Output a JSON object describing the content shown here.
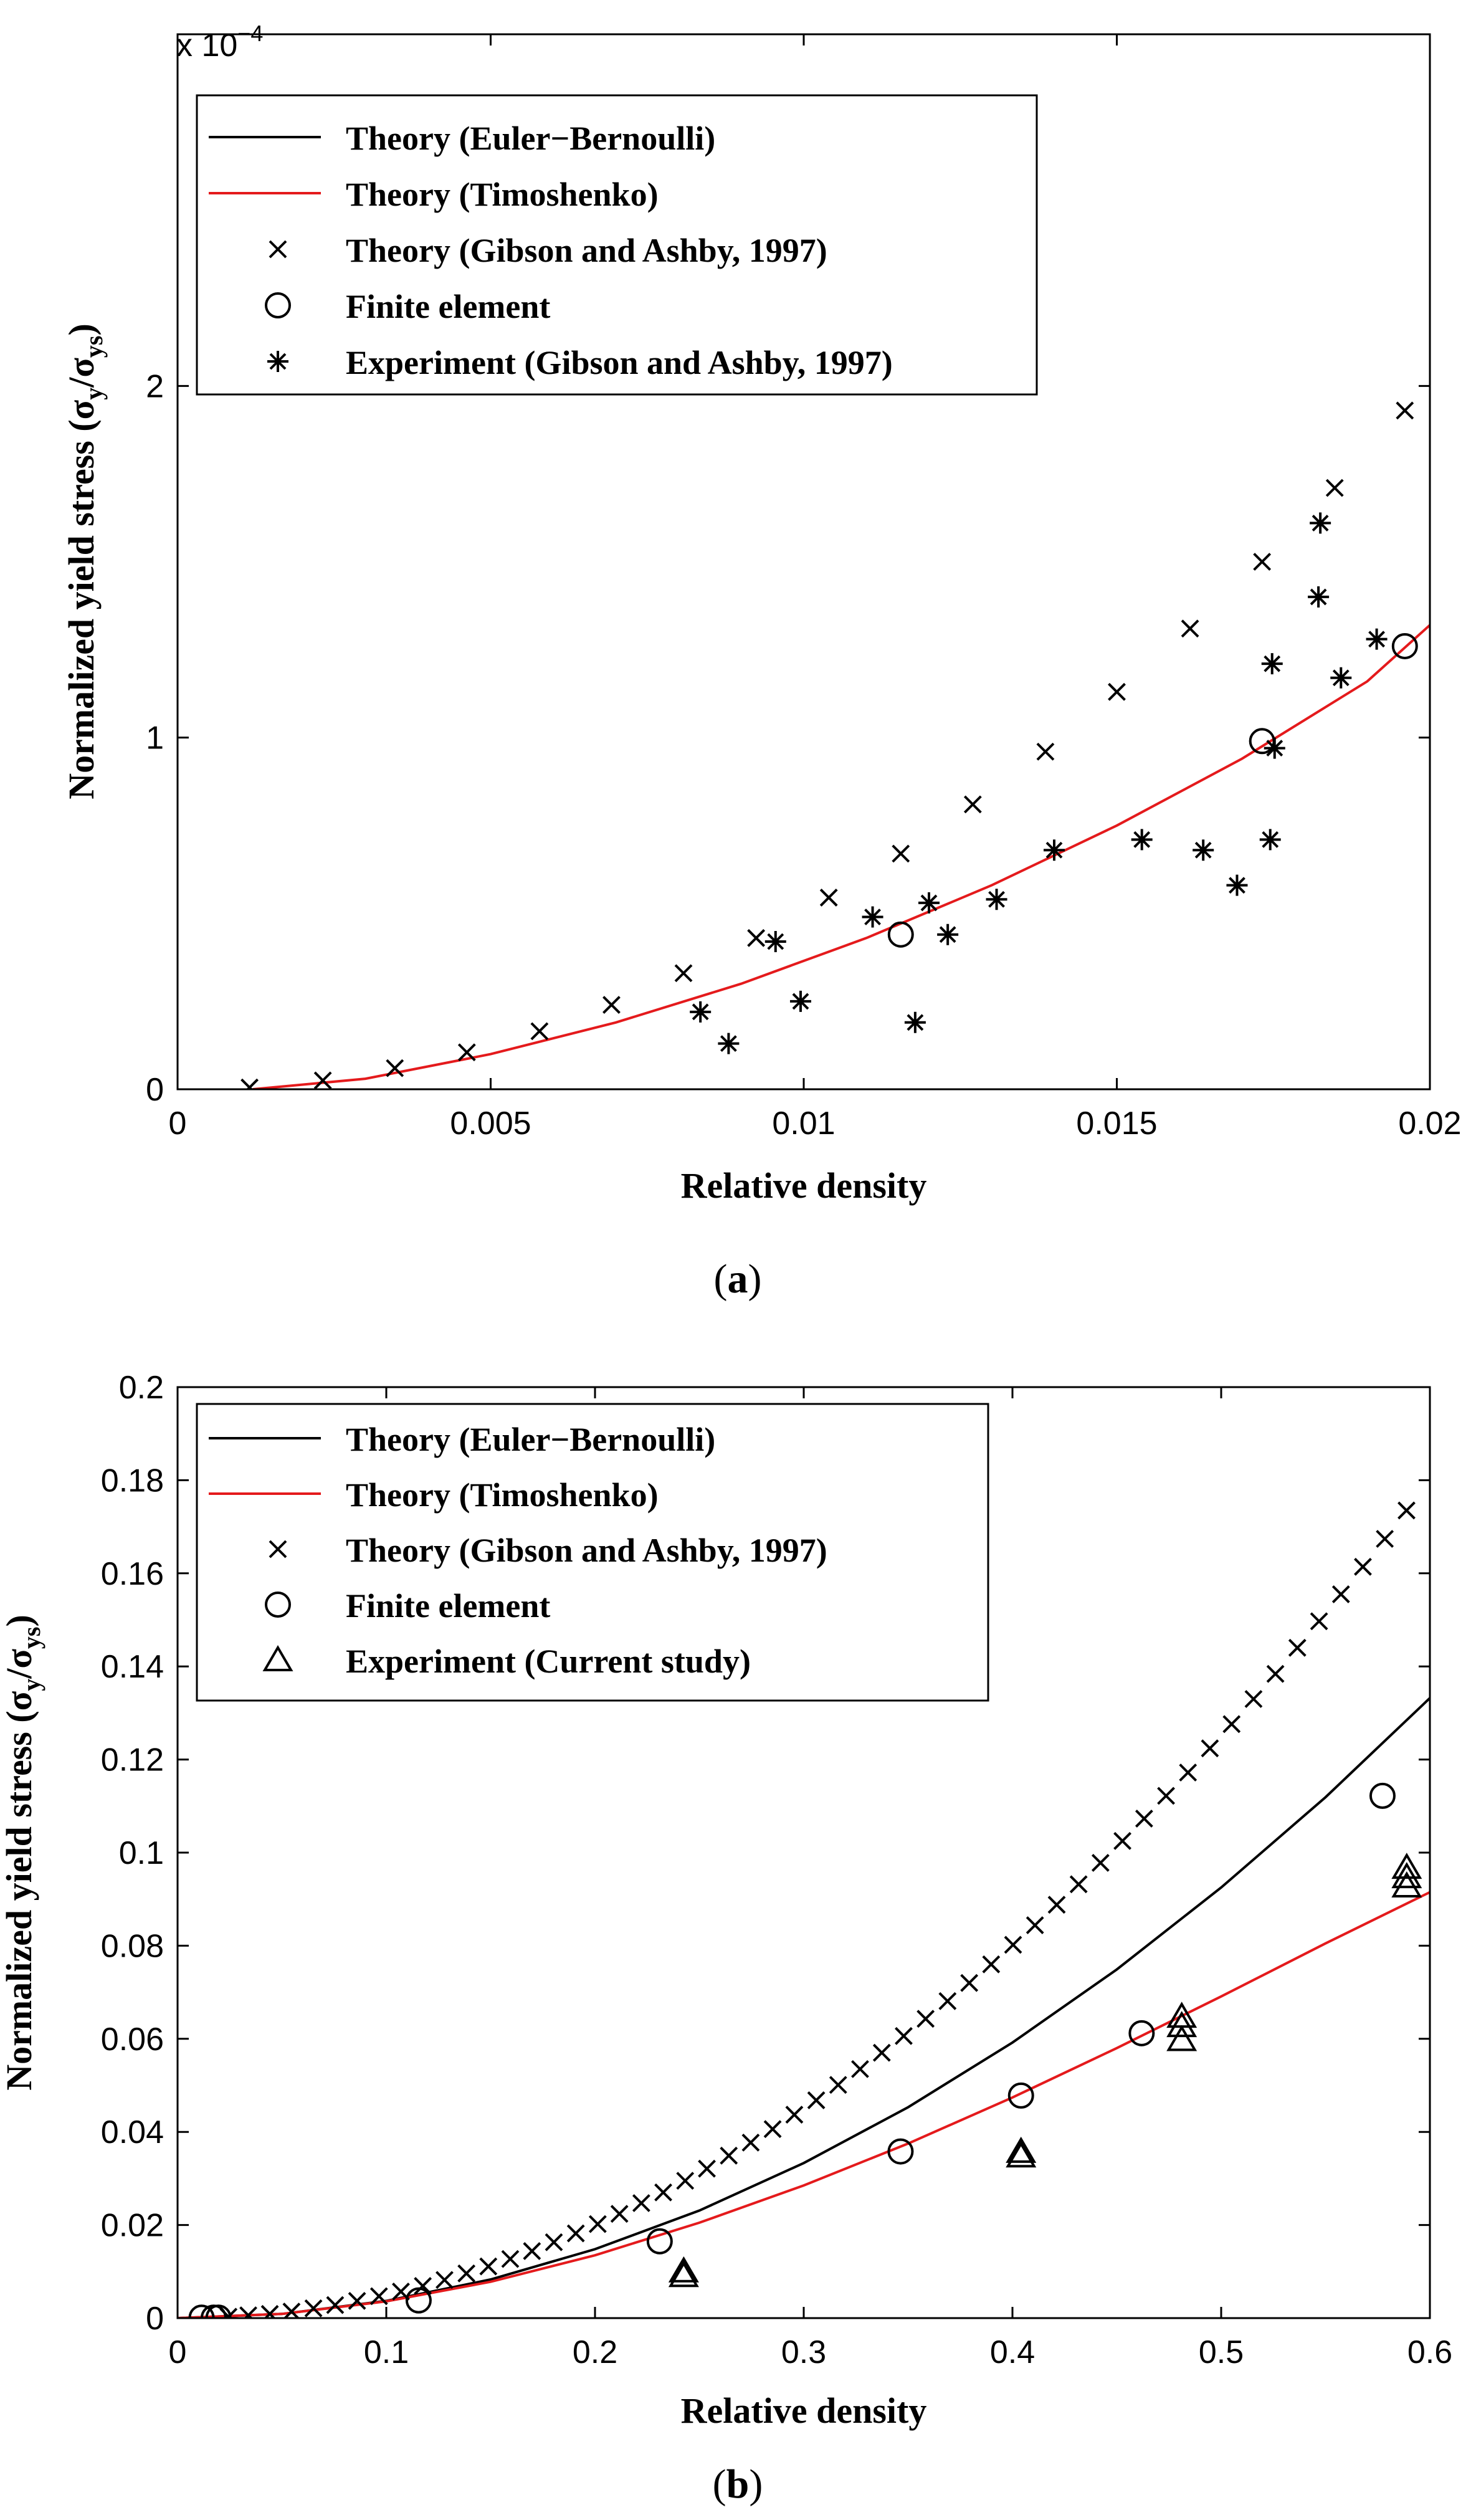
{
  "chart_data": [
    {
      "type": "scatter",
      "panel": "a",
      "caption": "a",
      "xlabel": "Relative density",
      "ylabel_main": "Normalized yield stress (σ",
      "ylabel_sub1": "y",
      "ylabel_mid": "/σ",
      "ylabel_sub2": "ys",
      "ylabel_end": ")",
      "multiplier_base": "x 10",
      "multiplier_exp": "−4",
      "xlim": [
        0,
        0.02
      ],
      "ylim": [
        0,
        3
      ],
      "xticks": [
        0,
        0.005,
        0.01,
        0.015,
        0.02
      ],
      "xtick_labels": [
        "0",
        "0.005",
        "0.01",
        "0.015",
        "0.02"
      ],
      "yticks": [
        0,
        1,
        2
      ],
      "ytick_labels": [
        "0",
        "1",
        "2"
      ],
      "legend_position": "top-left",
      "series": [
        {
          "name": "Theory (Euler−Bernoulli)",
          "style": "line",
          "color": "#000000",
          "x": [],
          "y": []
        },
        {
          "name": "Theory (Timoshenko)",
          "style": "line",
          "color": "#e41a1c",
          "x": [
            0.0012,
            0.003,
            0.005,
            0.007,
            0.009,
            0.011,
            0.013,
            0.015,
            0.017,
            0.019,
            0.02
          ],
          "y": [
            0.0,
            0.03,
            0.1,
            0.19,
            0.3,
            0.43,
            0.58,
            0.75,
            0.94,
            1.16,
            1.32
          ]
        },
        {
          "name": "Theory (Gibson and Ashby, 1997)",
          "style": "x",
          "color": "#000000",
          "x": [
            0.00115,
            0.00232,
            0.00347,
            0.00462,
            0.00578,
            0.00693,
            0.00808,
            0.00924,
            0.0104,
            0.01155,
            0.0127,
            0.01386,
            0.015,
            0.01617,
            0.01732,
            0.01848,
            0.0196
          ],
          "y": [
            0.005,
            0.025,
            0.06,
            0.105,
            0.165,
            0.24,
            0.33,
            0.43,
            0.545,
            0.67,
            0.81,
            0.96,
            1.13,
            1.31,
            1.5,
            1.71,
            1.93
          ]
        },
        {
          "name": "Finite element",
          "style": "o",
          "color": "#000000",
          "x": [
            0.01155,
            0.01732,
            0.0196
          ],
          "y": [
            0.44,
            0.99,
            1.26
          ]
        },
        {
          "name": "Experiment (Gibson and Ashby, 1997)",
          "style": "*",
          "color": "#000000",
          "x": [
            0.00835,
            0.0088,
            0.00955,
            0.00995,
            0.0111,
            0.01178,
            0.012,
            0.0123,
            0.01308,
            0.014,
            0.0154,
            0.01638,
            0.01692,
            0.01745,
            0.01748,
            0.01752,
            0.01822,
            0.01825,
            0.01858,
            0.01915
          ],
          "y": [
            0.22,
            0.13,
            0.42,
            0.25,
            0.49,
            0.19,
            0.53,
            0.44,
            0.54,
            0.68,
            0.71,
            0.68,
            0.58,
            0.71,
            1.21,
            0.97,
            1.4,
            1.61,
            1.17,
            1.28
          ]
        }
      ]
    },
    {
      "type": "scatter",
      "panel": "b",
      "caption": "b",
      "xlabel": "Relative density",
      "ylabel_main": "Normalized yield stress (σ",
      "ylabel_sub1": "y",
      "ylabel_mid": "/σ",
      "ylabel_sub2": "ys",
      "ylabel_end": ")",
      "xlim": [
        0,
        0.6
      ],
      "ylim": [
        0,
        0.2
      ],
      "xticks": [
        0,
        0.1,
        0.2,
        0.3,
        0.4,
        0.5,
        0.6
      ],
      "xtick_labels": [
        "0",
        "0.1",
        "0.2",
        "0.3",
        "0.4",
        "0.5",
        "0.6"
      ],
      "yticks": [
        0,
        0.02,
        0.04,
        0.06,
        0.08,
        0.1,
        0.12,
        0.14,
        0.16,
        0.18,
        0.2
      ],
      "ytick_labels": [
        "0",
        "0.02",
        "0.04",
        "0.06",
        "0.08",
        "0.1",
        "0.12",
        "0.14",
        "0.16",
        "0.18",
        "0.2"
      ],
      "legend_position": "top-left",
      "series": [
        {
          "name": "Theory (Euler−Bernoulli)",
          "style": "line",
          "color": "#000000",
          "x": [
            0,
            0.05,
            0.1,
            0.15,
            0.2,
            0.25,
            0.3,
            0.35,
            0.4,
            0.45,
            0.5,
            0.55,
            0.6
          ],
          "y": [
            0,
            0.0009,
            0.0037,
            0.0083,
            0.0148,
            0.0231,
            0.0333,
            0.0453,
            0.0592,
            0.0749,
            0.0925,
            0.1119,
            0.1332
          ]
        },
        {
          "name": "Theory (Timoshenko)",
          "style": "line",
          "color": "#e41a1c",
          "x": [
            0,
            0.05,
            0.1,
            0.15,
            0.2,
            0.25,
            0.3,
            0.35,
            0.4,
            0.45,
            0.5,
            0.55,
            0.6
          ],
          "y": [
            0,
            0.0009,
            0.0036,
            0.0078,
            0.0135,
            0.0205,
            0.0285,
            0.0375,
            0.0474,
            0.058,
            0.0691,
            0.0805,
            0.0915
          ]
        },
        {
          "name": "Theory (Gibson and Ashby, 1997)",
          "style": "x",
          "color": "#000000",
          "x": [
            0.0244,
            0.0339,
            0.0442,
            0.0546,
            0.0651,
            0.0755,
            0.086,
            0.0965,
            0.107,
            0.1175,
            0.1279,
            0.1384,
            0.1489,
            0.1594,
            0.1698,
            0.1803,
            0.1908,
            0.2013,
            0.2117,
            0.2222,
            0.2327,
            0.2432,
            0.2536,
            0.2641,
            0.2746,
            0.2851,
            0.2955,
            0.306,
            0.3165,
            0.327,
            0.3374,
            0.3479,
            0.3584,
            0.3689,
            0.3793,
            0.3898,
            0.4003,
            0.4108,
            0.4212,
            0.4317,
            0.4422,
            0.4527,
            0.4631,
            0.4736,
            0.4841,
            0.4946,
            0.505,
            0.5155,
            0.526,
            0.5365,
            0.5469,
            0.5574,
            0.5679,
            0.5784,
            0.5888
          ],
          "y": [
            0.0003,
            0.0006,
            0.0009,
            0.0014,
            0.0021,
            0.0028,
            0.0037,
            0.0047,
            0.0057,
            0.0069,
            0.0082,
            0.0096,
            0.0111,
            0.0127,
            0.0144,
            0.0163,
            0.0182,
            0.0202,
            0.0224,
            0.0247,
            0.027,
            0.0295,
            0.0321,
            0.0349,
            0.0377,
            0.0406,
            0.0437,
            0.0468,
            0.0501,
            0.0535,
            0.057,
            0.0606,
            0.0643,
            0.0681,
            0.072,
            0.076,
            0.0802,
            0.0844,
            0.0888,
            0.0932,
            0.0978,
            0.1025,
            0.1073,
            0.1122,
            0.1172,
            0.1224,
            0.1276,
            0.133,
            0.1384,
            0.144,
            0.1497,
            0.1555,
            0.1614,
            0.1674,
            0.1735
          ]
        },
        {
          "name": "Finite element",
          "style": "o",
          "color": "#000000",
          "x": [
            0.0115,
            0.0173,
            0.0196,
            0.1155,
            0.231,
            0.3464,
            0.4041,
            0.4619,
            0.5773
          ],
          "y": [
            0.0001,
            0.0001,
            0.0001,
            0.0038,
            0.0165,
            0.0358,
            0.0478,
            0.0612,
            0.1122
          ]
        },
        {
          "name": "Experiment (Current study)",
          "style": "^",
          "color": "#000000",
          "x": [
            0.2425,
            0.2425,
            0.4041,
            0.4041,
            0.4811,
            0.4811,
            0.4811,
            0.5889,
            0.5889,
            0.5889
          ],
          "y": [
            0.0088,
            0.0098,
            0.0345,
            0.0355,
            0.0595,
            0.0625,
            0.0645,
            0.0925,
            0.0945,
            0.0965
          ]
        }
      ]
    }
  ]
}
